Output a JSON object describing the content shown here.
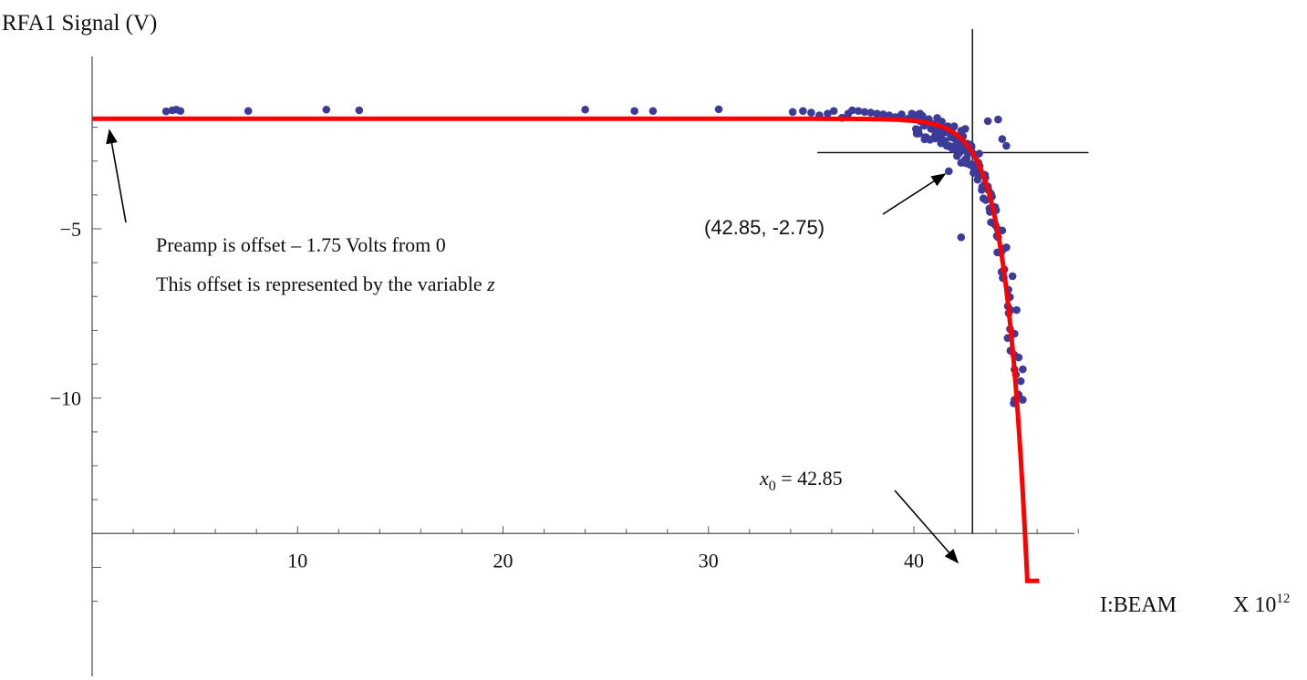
{
  "chart_data": {
    "type": "scatter",
    "title": "",
    "ylabel": "RFA1 Signal (V)",
    "xlabel": "I:BEAM",
    "xlabel_unit": "X 10",
    "xlabel_exponent": "12",
    "xlim": [
      0,
      48.3
    ],
    "ylim": [
      -14.0,
      0.0
    ],
    "x_ticks": [
      10,
      20,
      30,
      40
    ],
    "x_tick_labels": [
      "10",
      "20",
      "30",
      "40"
    ],
    "y_ticks": [
      -5,
      -10
    ],
    "y_tick_labels": [
      "−5",
      "−10"
    ],
    "grid": false,
    "legend": "none",
    "colors": {
      "points": "#3b3b98",
      "fit": "#ff0000",
      "lines": "#000000"
    },
    "series": [
      {
        "kind": "points",
        "points": [
          [
            3.6,
            -1.53
          ],
          [
            3.9,
            -1.5
          ],
          [
            4.1,
            -1.48
          ],
          [
            4.3,
            -1.52
          ],
          [
            7.6,
            -1.52
          ],
          [
            11.4,
            -1.48
          ],
          [
            13.0,
            -1.5
          ],
          [
            24.0,
            -1.48
          ],
          [
            26.4,
            -1.52
          ],
          [
            27.3,
            -1.52
          ],
          [
            30.5,
            -1.47
          ],
          [
            34.1,
            -1.55
          ],
          [
            34.6,
            -1.52
          ],
          [
            35.0,
            -1.57
          ],
          [
            35.4,
            -1.65
          ],
          [
            35.8,
            -1.6
          ],
          [
            36.1,
            -1.52
          ],
          [
            36.5,
            -1.72
          ],
          [
            36.8,
            -1.6
          ],
          [
            37.0,
            -1.5
          ],
          [
            37.3,
            -1.52
          ],
          [
            37.6,
            -1.55
          ],
          [
            37.9,
            -1.57
          ],
          [
            38.2,
            -1.6
          ],
          [
            38.5,
            -1.62
          ],
          [
            38.8,
            -1.65
          ],
          [
            39.1,
            -1.7
          ],
          [
            39.4,
            -1.62
          ],
          [
            39.7,
            -1.75
          ],
          [
            40.0,
            -1.75
          ],
          [
            40.3,
            -1.82
          ],
          [
            40.6,
            -1.85
          ],
          [
            40.9,
            -1.92
          ],
          [
            41.0,
            -2.08
          ],
          [
            41.2,
            -2.25
          ],
          [
            41.3,
            -2.05
          ],
          [
            41.5,
            -2.4
          ],
          [
            41.6,
            -2.55
          ],
          [
            41.8,
            -2.3
          ],
          [
            41.9,
            -2.65
          ],
          [
            42.1,
            -2.85
          ],
          [
            42.2,
            -2.45
          ],
          [
            42.3,
            -3.05
          ],
          [
            42.4,
            -2.62
          ],
          [
            42.5,
            -2.95
          ],
          [
            42.6,
            -2.75
          ],
          [
            42.7,
            -3.1
          ],
          [
            42.8,
            -2.55
          ],
          [
            42.9,
            -3.35
          ],
          [
            43.0,
            -2.85
          ],
          [
            43.1,
            -3.55
          ],
          [
            43.2,
            -3.15
          ],
          [
            43.3,
            -3.85
          ],
          [
            43.4,
            -3.4
          ],
          [
            43.5,
            -4.15
          ],
          [
            43.6,
            -3.75
          ],
          [
            43.7,
            -4.5
          ],
          [
            43.8,
            -4.05
          ],
          [
            43.9,
            -4.85
          ],
          [
            44.0,
            -4.45
          ],
          [
            44.1,
            -5.25
          ],
          [
            44.2,
            -5.7
          ],
          [
            44.3,
            -5.05
          ],
          [
            44.4,
            -6.2
          ],
          [
            44.5,
            -5.55
          ],
          [
            44.6,
            -6.8
          ],
          [
            44.7,
            -7.4
          ],
          [
            44.8,
            -6.4
          ],
          [
            44.9,
            -8.1
          ],
          [
            45.0,
            -7.4
          ],
          [
            45.1,
            -8.8
          ],
          [
            45.2,
            -9.5
          ],
          [
            45.3,
            -10.05
          ],
          [
            45.1,
            -9.9
          ],
          [
            44.9,
            -10.05
          ],
          [
            44.7,
            -8.6
          ],
          [
            45.3,
            -9.15
          ],
          [
            44.3,
            -2.35
          ],
          [
            44.5,
            -2.55
          ],
          [
            43.6,
            -1.82
          ],
          [
            44.1,
            -1.77
          ],
          [
            42.3,
            -5.25
          ],
          [
            41.7,
            -3.3
          ],
          [
            40.6,
            -2.3
          ],
          [
            39.9,
            -1.6
          ],
          [
            40.3,
            -1.6
          ],
          [
            42.5,
            -2.05
          ]
        ]
      },
      {
        "kind": "fit",
        "model": "y = z - a*exp(b*(x - x0))",
        "z": -1.75,
        "x0": 42.85,
        "a": 1.0,
        "b": 0.98,
        "x_range": [
          0,
          46.1
        ]
      }
    ],
    "reference_lines": {
      "x": 42.85,
      "y": -2.75,
      "x_span": [
        35.3,
        48.5
      ],
      "y_span": [
        0.9,
        -14.0
      ]
    },
    "annotations": {
      "point_label": "(42.85, -2.75)",
      "x0_symbol": "x",
      "x0_subscript": "0",
      "x0_value_text": " = 42.85",
      "offset_line1": "Preamp is offset – 1.75 Volts from 0",
      "offset_line2_text": "This offset is represented by the variable ",
      "offset_line2_var": "z"
    }
  }
}
